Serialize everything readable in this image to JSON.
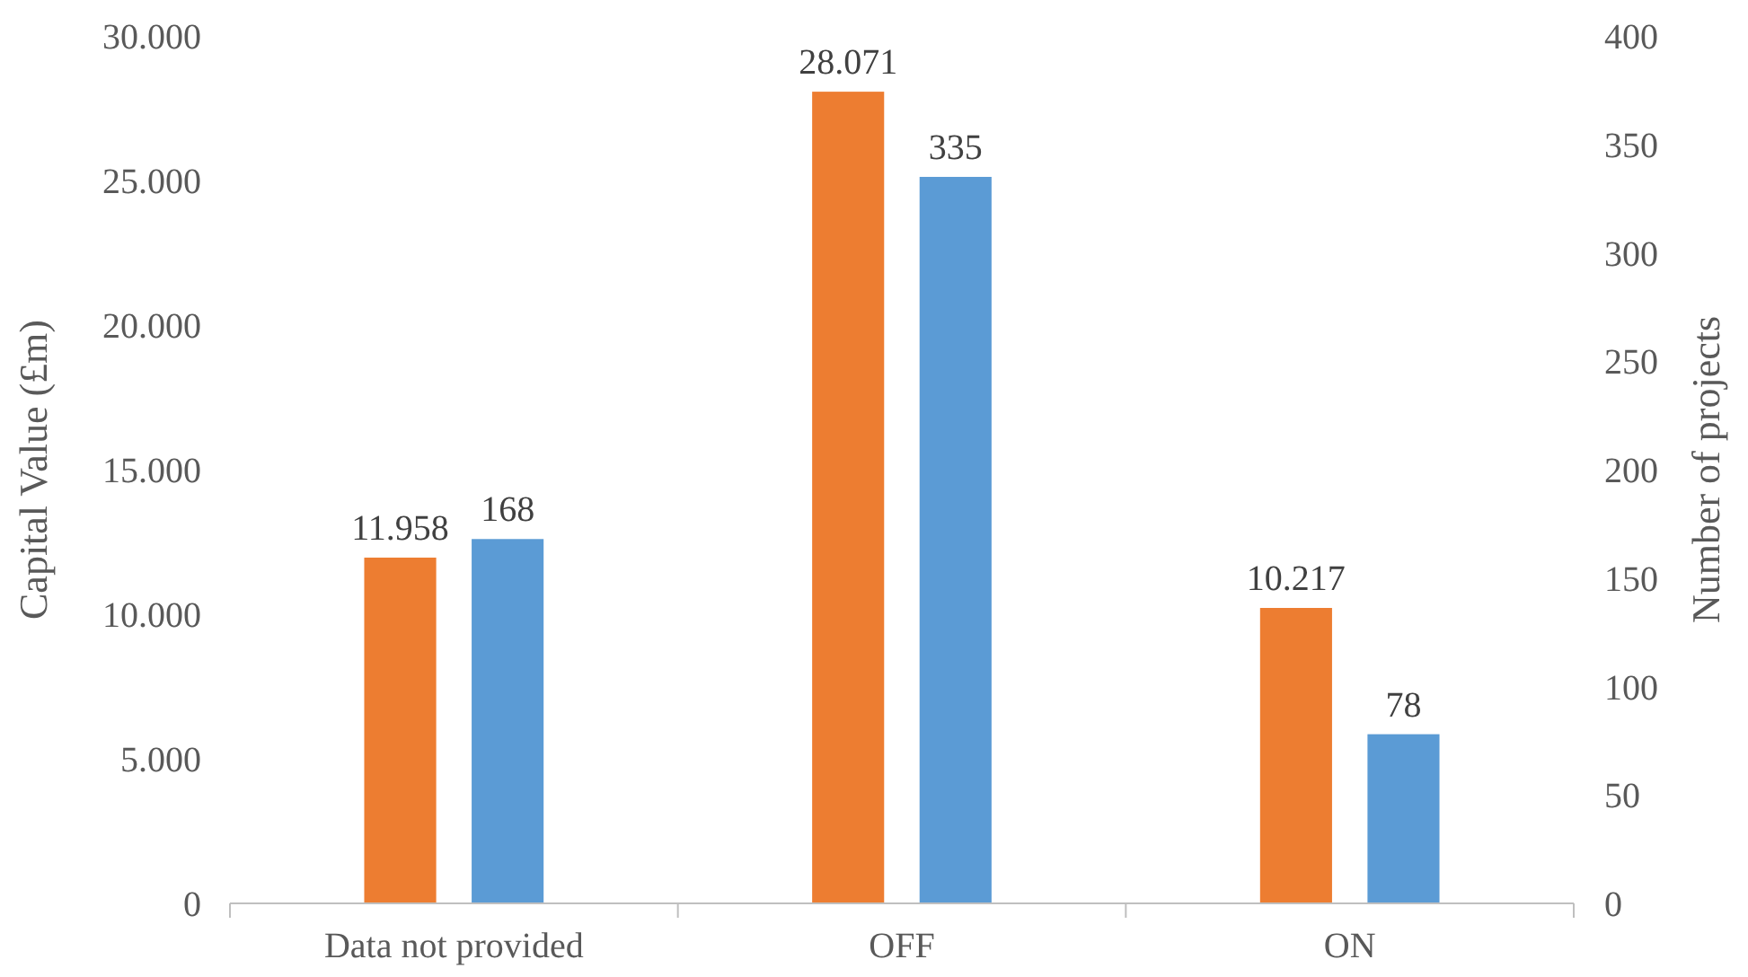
{
  "chart_data": {
    "type": "bar",
    "categories": [
      "Data not provided",
      "OFF",
      "ON"
    ],
    "series": [
      {
        "color": "#ed7d31",
        "values": [
          11958,
          28071,
          10217
        ],
        "value_labels": [
          "11.958",
          "28.071",
          "10.217"
        ]
      },
      {
        "color": "#5b9bd5",
        "axis": "y2",
        "values": [
          168,
          335,
          78
        ],
        "value_labels": [
          "168",
          "335",
          "78"
        ]
      }
    ],
    "ylabel": "Capital Value (£m)",
    "y2label": "Number of projects",
    "ylim": [
      0,
      30000
    ],
    "yticks": [
      0,
      {
        "value": 5000,
        "label": "5.000"
      },
      {
        "value": 10000,
        "label": "10.000"
      },
      {
        "value": 15000,
        "label": "15.000"
      },
      {
        "value": 20000,
        "label": "20.000"
      },
      {
        "value": 25000,
        "label": "25.000"
      },
      {
        "value": 30000,
        "label": "30.000"
      }
    ],
    "y2lim": [
      0,
      400
    ],
    "y2ticks": [
      0,
      50,
      100,
      150,
      200,
      250,
      300,
      350,
      400
    ],
    "grid": false
  }
}
